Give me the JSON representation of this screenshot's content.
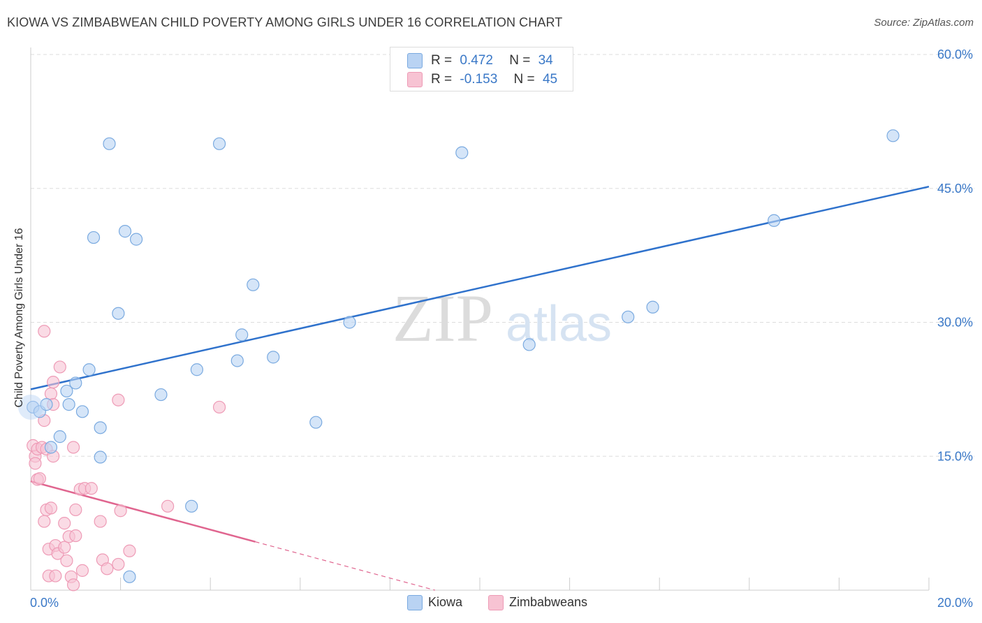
{
  "header": {
    "title": "KIOWA VS ZIMBABWEAN CHILD POVERTY AMONG GIRLS UNDER 16 CORRELATION CHART",
    "source_prefix": "Source: ",
    "source_name": "ZipAtlas.com"
  },
  "watermark": {
    "zip": "ZIP",
    "atlas": "atlas"
  },
  "legend_top": {
    "rows": [
      {
        "r_label": "R =",
        "r_value": "0.472",
        "n_label": "N =",
        "n_value": "34"
      },
      {
        "r_label": "R =",
        "r_value": "-0.153",
        "n_label": "N =",
        "n_value": "45"
      }
    ]
  },
  "legend_bottom": {
    "items": [
      "Kiowa",
      "Zimbabweans"
    ]
  },
  "colors": {
    "kiowa_fill": "#b9d3f3",
    "kiowa_stroke": "#7aaae0",
    "kiowa_line": "#2f72cc",
    "zimb_fill": "#f7c3d3",
    "zimb_stroke": "#ee9bb6",
    "zimb_line": "#e0658f",
    "tick_label": "#3a78c7",
    "grid": "#dddddd"
  },
  "chart_data": {
    "type": "scatter",
    "title": "KIOWA VS ZIMBABWEAN CHILD POVERTY AMONG GIRLS UNDER 16 CORRELATION CHART",
    "xlabel": "",
    "ylabel": "Child Poverty Among Girls Under 16",
    "xlim": [
      0,
      20
    ],
    "ylim": [
      0,
      60
    ],
    "x_tick_labels": [
      {
        "value": 0,
        "label": "0.0%"
      },
      {
        "value": 20,
        "label": "20.0%"
      }
    ],
    "y_tick_labels": [
      {
        "value": 15,
        "label": "15.0%"
      },
      {
        "value": 30,
        "label": "30.0%"
      },
      {
        "value": 45,
        "label": "45.0%"
      },
      {
        "value": 60,
        "label": "60.0%"
      }
    ],
    "grid": true,
    "legend_position": "top-center",
    "series": [
      {
        "name": "Kiowa",
        "r": 0.472,
        "n": 34,
        "trend": {
          "x0": 0,
          "y0": 22.5,
          "x1": 20,
          "y1": 45.2,
          "solid_to": 20
        },
        "points": [
          [
            0.05,
            20.5
          ],
          [
            0.2,
            20.0
          ],
          [
            0.35,
            20.8
          ],
          [
            0.45,
            16.0
          ],
          [
            0.65,
            17.2
          ],
          [
            0.8,
            22.3
          ],
          [
            0.85,
            20.8
          ],
          [
            1.0,
            23.2
          ],
          [
            1.15,
            20.0
          ],
          [
            1.3,
            24.7
          ],
          [
            1.4,
            39.5
          ],
          [
            1.55,
            18.2
          ],
          [
            1.55,
            14.9
          ],
          [
            1.75,
            50.0
          ],
          [
            1.95,
            31.0
          ],
          [
            2.1,
            40.2
          ],
          [
            2.2,
            1.5
          ],
          [
            2.35,
            39.3
          ],
          [
            2.9,
            21.9
          ],
          [
            3.7,
            24.7
          ],
          [
            4.2,
            50.0
          ],
          [
            4.6,
            25.7
          ],
          [
            4.7,
            28.6
          ],
          [
            4.95,
            34.2
          ],
          [
            5.4,
            26.1
          ],
          [
            3.58,
            9.4
          ],
          [
            6.35,
            18.8
          ],
          [
            7.1,
            30.0
          ],
          [
            9.6,
            49.0
          ],
          [
            11.1,
            27.5
          ],
          [
            13.3,
            30.6
          ],
          [
            13.85,
            31.7
          ],
          [
            16.55,
            41.4
          ],
          [
            19.2,
            50.9
          ]
        ]
      },
      {
        "name": "Zimbabweans",
        "r": -0.153,
        "n": 45,
        "trend": {
          "x0": 0,
          "y0": 12.2,
          "x1": 9.0,
          "y1": 0.0,
          "solid_to": 5.0
        },
        "points": [
          [
            0.05,
            16.2
          ],
          [
            0.1,
            15.0
          ],
          [
            0.1,
            14.2
          ],
          [
            0.15,
            15.8
          ],
          [
            0.15,
            12.4
          ],
          [
            0.2,
            12.5
          ],
          [
            0.25,
            16.0
          ],
          [
            0.3,
            19.0
          ],
          [
            0.3,
            7.7
          ],
          [
            0.35,
            15.8
          ],
          [
            0.3,
            29.0
          ],
          [
            0.35,
            9.0
          ],
          [
            0.4,
            4.6
          ],
          [
            0.4,
            1.6
          ],
          [
            0.45,
            22.0
          ],
          [
            0.45,
            9.2
          ],
          [
            0.5,
            20.8
          ],
          [
            0.5,
            15.0
          ],
          [
            0.5,
            23.3
          ],
          [
            0.55,
            5.0
          ],
          [
            0.55,
            1.6
          ],
          [
            0.6,
            4.1
          ],
          [
            0.65,
            25.0
          ],
          [
            0.75,
            4.8
          ],
          [
            0.75,
            7.5
          ],
          [
            0.8,
            3.3
          ],
          [
            0.85,
            6.0
          ],
          [
            0.9,
            1.5
          ],
          [
            0.95,
            16.0
          ],
          [
            0.95,
            0.6
          ],
          [
            1.0,
            9.0
          ],
          [
            1.0,
            6.1
          ],
          [
            1.1,
            11.3
          ],
          [
            1.15,
            2.2
          ],
          [
            1.2,
            11.4
          ],
          [
            1.55,
            7.7
          ],
          [
            1.6,
            3.4
          ],
          [
            1.7,
            2.4
          ],
          [
            1.95,
            21.3
          ],
          [
            1.95,
            2.9
          ],
          [
            2.0,
            8.9
          ],
          [
            2.2,
            4.4
          ],
          [
            3.05,
            9.4
          ],
          [
            4.2,
            20.5
          ],
          [
            1.35,
            11.4
          ]
        ]
      }
    ]
  }
}
